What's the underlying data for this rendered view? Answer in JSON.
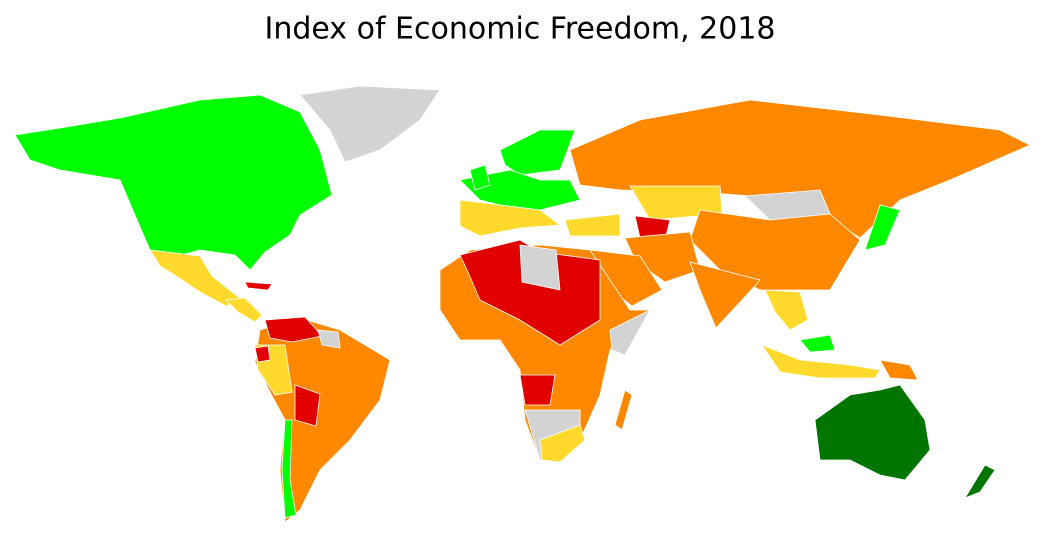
{
  "title": "Index of Economic Freedom, 2018"
}
